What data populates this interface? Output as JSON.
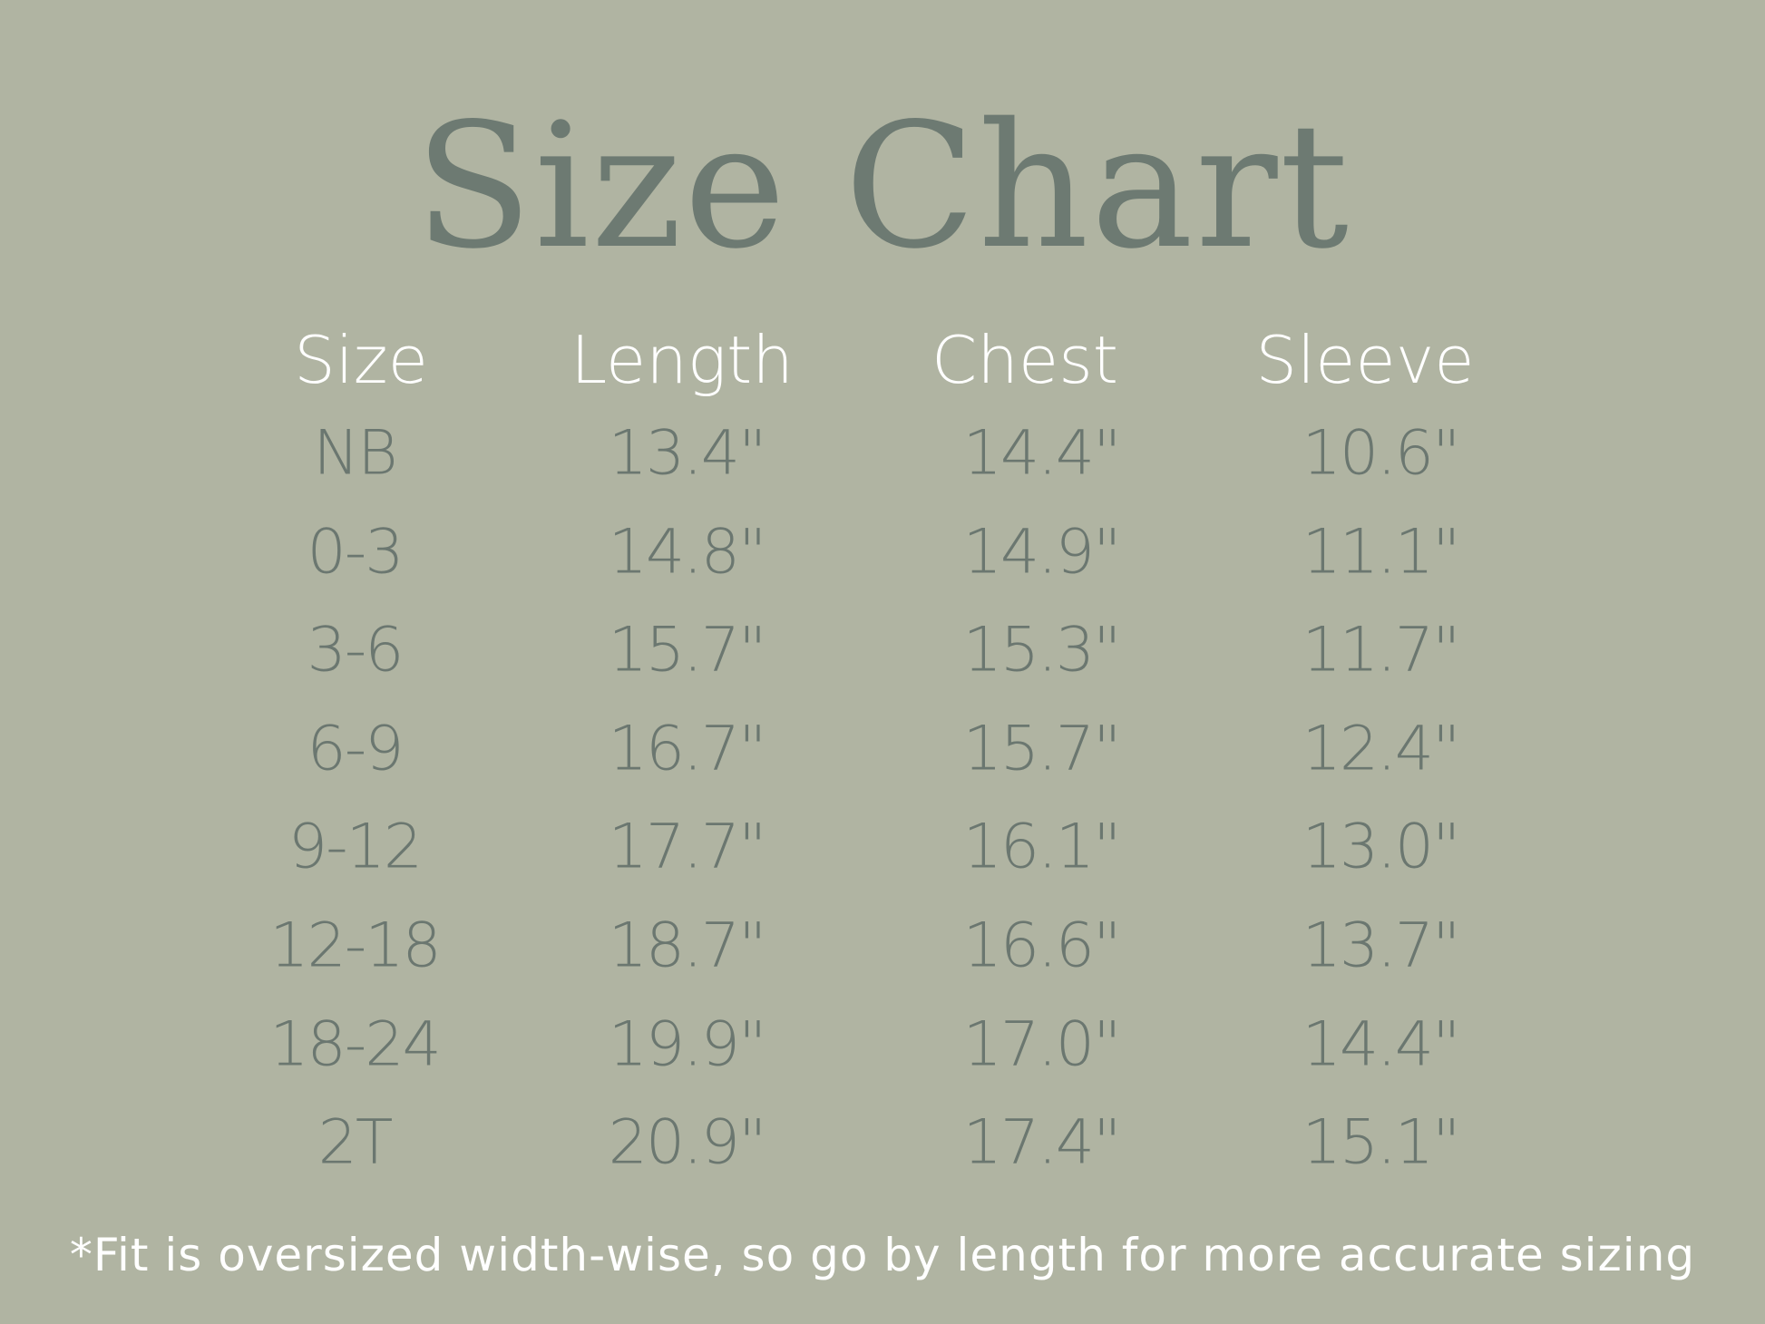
{
  "title": "Size Chart",
  "colors": {
    "background": "#b0b4a2",
    "title": "#6d7a72",
    "header": "#ffffff",
    "values": "#6b7770"
  },
  "columns": [
    "Size",
    "Length",
    "Chest",
    "Sleeve"
  ],
  "rows": [
    [
      "NB",
      "13.4\"",
      "14.4\"",
      "10.6\""
    ],
    [
      "0-3",
      "14.8\"",
      "14.9\"",
      "11.1\""
    ],
    [
      "3-6",
      "15.7\"",
      "15.3\"",
      "11.7\""
    ],
    [
      "6-9",
      "16.7\"",
      "15.7\"",
      "12.4\""
    ],
    [
      "9-12",
      "17.7\"",
      "16.1\"",
      "13.0\""
    ],
    [
      "12-18",
      "18.7\"",
      "16.6\"",
      "13.7\""
    ],
    [
      "18-24",
      "19.9\"",
      "17.0\"",
      "14.4\""
    ],
    [
      "2T",
      "20.9\"",
      "17.4\"",
      "15.1\""
    ]
  ],
  "footnote": "*Fit is oversized width-wise, so go by length for more accurate sizing"
}
